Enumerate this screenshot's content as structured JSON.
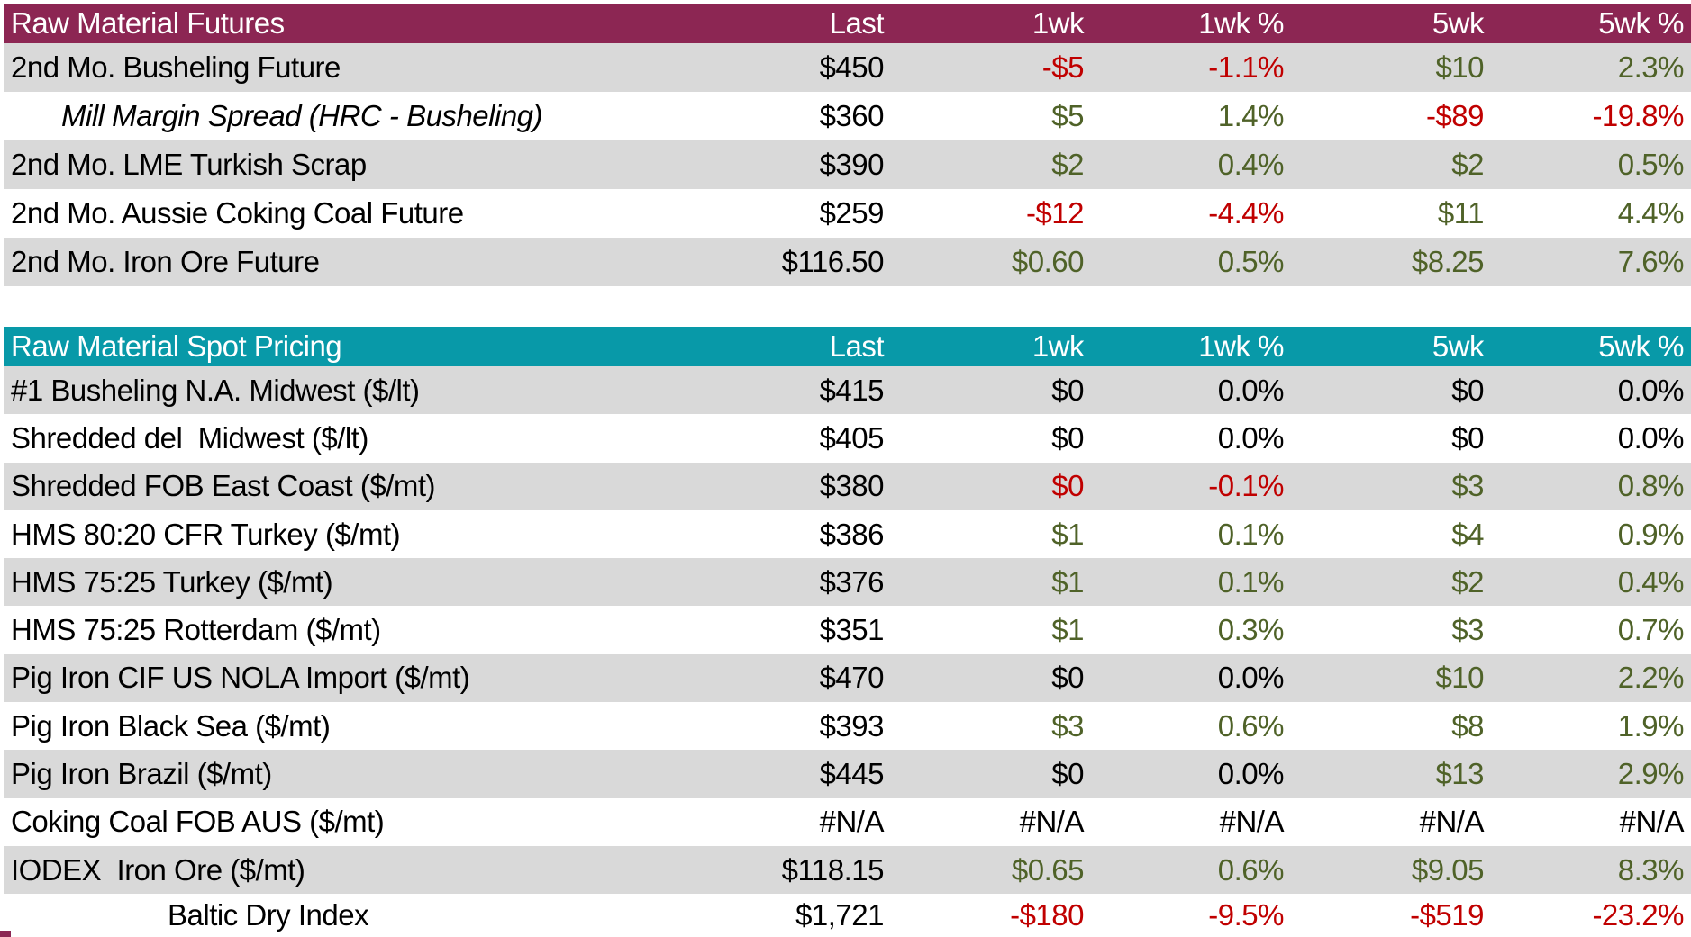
{
  "colors": {
    "futures_header_bg": "#8C2653",
    "spot_header_bg": "#0899A8",
    "row_alt_bg": "#D9D9D9",
    "row_bg": "#FFFFFF",
    "header_text": "#FFFFFF",
    "up_text": "#4F6228",
    "down_text": "#C00000",
    "neutral_text": "#000000"
  },
  "columns": [
    "Last",
    "1wk",
    "1wk %",
    "5wk",
    "5wk %"
  ],
  "futures": {
    "title": "Raw Material Futures",
    "rows": [
      {
        "label": "2nd Mo. Busheling Future",
        "style": "normal",
        "cells": [
          {
            "v": "$450",
            "t": "flat"
          },
          {
            "v": "-$5",
            "t": "down"
          },
          {
            "v": "-1.1%",
            "t": "down"
          },
          {
            "v": "$10",
            "t": "up"
          },
          {
            "v": "2.3%",
            "t": "up"
          }
        ]
      },
      {
        "label": "Mill Margin Spread (HRC - Busheling)",
        "style": "italic-indent",
        "cells": [
          {
            "v": "$360",
            "t": "flat"
          },
          {
            "v": "$5",
            "t": "up"
          },
          {
            "v": "1.4%",
            "t": "up"
          },
          {
            "v": "-$89",
            "t": "down"
          },
          {
            "v": "-19.8%",
            "t": "down"
          }
        ]
      },
      {
        "label": "2nd Mo. LME Turkish Scrap",
        "style": "normal",
        "cells": [
          {
            "v": "$390",
            "t": "flat"
          },
          {
            "v": "$2",
            "t": "up"
          },
          {
            "v": "0.4%",
            "t": "up"
          },
          {
            "v": "$2",
            "t": "up"
          },
          {
            "v": "0.5%",
            "t": "up"
          }
        ]
      },
      {
        "label": "2nd Mo. Aussie Coking Coal Future",
        "style": "normal",
        "cells": [
          {
            "v": "$259",
            "t": "flat"
          },
          {
            "v": "-$12",
            "t": "down"
          },
          {
            "v": "-4.4%",
            "t": "down"
          },
          {
            "v": "$11",
            "t": "up"
          },
          {
            "v": "4.4%",
            "t": "up"
          }
        ]
      },
      {
        "label": "2nd Mo. Iron Ore Future",
        "style": "normal",
        "cells": [
          {
            "v": "$116.50",
            "t": "flat"
          },
          {
            "v": "$0.60",
            "t": "up"
          },
          {
            "v": "0.5%",
            "t": "up"
          },
          {
            "v": "$8.25",
            "t": "up"
          },
          {
            "v": "7.6%",
            "t": "up"
          }
        ]
      }
    ]
  },
  "spot": {
    "title": "Raw Material Spot Pricing",
    "rows": [
      {
        "label": "#1 Busheling N.A. Midwest ($/lt)",
        "style": "normal",
        "cells": [
          {
            "v": "$415",
            "t": "flat"
          },
          {
            "v": "$0",
            "t": "flat"
          },
          {
            "v": "0.0%",
            "t": "flat"
          },
          {
            "v": "$0",
            "t": "flat"
          },
          {
            "v": "0.0%",
            "t": "flat"
          }
        ]
      },
      {
        "label": "Shredded del  Midwest ($/lt)",
        "style": "normal",
        "cells": [
          {
            "v": "$405",
            "t": "flat"
          },
          {
            "v": "$0",
            "t": "flat"
          },
          {
            "v": "0.0%",
            "t": "flat"
          },
          {
            "v": "$0",
            "t": "flat"
          },
          {
            "v": "0.0%",
            "t": "flat"
          }
        ]
      },
      {
        "label": "Shredded FOB East Coast ($/mt)",
        "style": "normal",
        "cells": [
          {
            "v": "$380",
            "t": "flat"
          },
          {
            "v": "$0",
            "t": "down"
          },
          {
            "v": "-0.1%",
            "t": "down"
          },
          {
            "v": "$3",
            "t": "up"
          },
          {
            "v": "0.8%",
            "t": "up"
          }
        ]
      },
      {
        "label": "HMS 80:20 CFR Turkey ($/mt)",
        "style": "normal",
        "cells": [
          {
            "v": "$386",
            "t": "flat"
          },
          {
            "v": "$1",
            "t": "up"
          },
          {
            "v": "0.1%",
            "t": "up"
          },
          {
            "v": "$4",
            "t": "up"
          },
          {
            "v": "0.9%",
            "t": "up"
          }
        ]
      },
      {
        "label": "HMS 75:25 Turkey ($/mt)",
        "style": "normal",
        "cells": [
          {
            "v": "$376",
            "t": "flat"
          },
          {
            "v": "$1",
            "t": "up"
          },
          {
            "v": "0.1%",
            "t": "up"
          },
          {
            "v": "$2",
            "t": "up"
          },
          {
            "v": "0.4%",
            "t": "up"
          }
        ]
      },
      {
        "label": "HMS 75:25 Rotterdam ($/mt)",
        "style": "normal",
        "cells": [
          {
            "v": "$351",
            "t": "flat"
          },
          {
            "v": "$1",
            "t": "up"
          },
          {
            "v": "0.3%",
            "t": "up"
          },
          {
            "v": "$3",
            "t": "up"
          },
          {
            "v": "0.7%",
            "t": "up"
          }
        ]
      },
      {
        "label": "Pig Iron CIF US NOLA Import ($/mt)",
        "style": "normal",
        "cells": [
          {
            "v": "$470",
            "t": "flat"
          },
          {
            "v": "$0",
            "t": "flat"
          },
          {
            "v": "0.0%",
            "t": "flat"
          },
          {
            "v": "$10",
            "t": "up"
          },
          {
            "v": "2.2%",
            "t": "up"
          }
        ]
      },
      {
        "label": "Pig Iron Black Sea ($/mt)",
        "style": "normal",
        "cells": [
          {
            "v": "$393",
            "t": "flat"
          },
          {
            "v": "$3",
            "t": "up"
          },
          {
            "v": "0.6%",
            "t": "up"
          },
          {
            "v": "$8",
            "t": "up"
          },
          {
            "v": "1.9%",
            "t": "up"
          }
        ]
      },
      {
        "label": "Pig Iron Brazil ($/mt)",
        "style": "normal",
        "cells": [
          {
            "v": "$445",
            "t": "flat"
          },
          {
            "v": "$0",
            "t": "flat"
          },
          {
            "v": "0.0%",
            "t": "flat"
          },
          {
            "v": "$13",
            "t": "up"
          },
          {
            "v": "2.9%",
            "t": "up"
          }
        ]
      },
      {
        "label": "Coking Coal FOB AUS ($/mt)",
        "style": "normal",
        "cells": [
          {
            "v": "#N/A",
            "t": "flat"
          },
          {
            "v": "#N/A",
            "t": "flat"
          },
          {
            "v": "#N/A",
            "t": "flat"
          },
          {
            "v": "#N/A",
            "t": "flat"
          },
          {
            "v": "#N/A",
            "t": "flat"
          }
        ]
      },
      {
        "label": "IODEX  Iron Ore ($/mt)",
        "style": "normal",
        "cells": [
          {
            "v": "$118.15",
            "t": "flat"
          },
          {
            "v": "$0.65",
            "t": "up"
          },
          {
            "v": "0.6%",
            "t": "up"
          },
          {
            "v": "$9.05",
            "t": "up"
          },
          {
            "v": "8.3%",
            "t": "up"
          }
        ]
      },
      {
        "label": "Baltic Dry Index",
        "style": "center-indent",
        "cells": [
          {
            "v": "$1,721",
            "t": "flat"
          },
          {
            "v": "-$180",
            "t": "down"
          },
          {
            "v": "-9.5%",
            "t": "down"
          },
          {
            "v": "-$519",
            "t": "down"
          },
          {
            "v": "-23.2%",
            "t": "down"
          }
        ]
      }
    ]
  }
}
